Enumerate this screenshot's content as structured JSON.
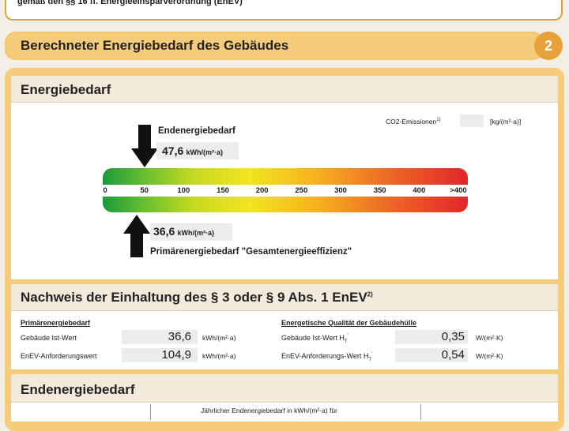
{
  "header": {
    "legal_text": "gemäß den §§ 16 ff. Energieeinsparverordnung (EnEV)"
  },
  "section": {
    "title": "Berechneter Energiebedarf des Gebäudes",
    "number": "2"
  },
  "energiebedarf": {
    "title": "Energiebedarf",
    "co2_label": "CO2-Emissionen",
    "co2_sup": "1)",
    "co2_unit": "[kg/(m²·a)]",
    "end_label": "Endenergiebedarf",
    "end_value": "47,6",
    "end_unit": "kWh/(m²·a)",
    "primary_value": "36,6",
    "primary_unit": "kWh/(m²·a)",
    "primary_label": "Primärenergiebedarf \"Gesamtenergieeffizienz\"",
    "scale_ticks": [
      "0",
      "50",
      "100",
      "150",
      "200",
      "250",
      "300",
      "350",
      "400",
      ">400"
    ],
    "end_marker_value": 47.6,
    "primary_marker_value": 36.6,
    "scale_max": 440,
    "colors": {
      "green": "#1a9a3a",
      "yellow": "#f2e51e",
      "red": "#e2262a"
    }
  },
  "nachweis": {
    "title": "Nachweis der Einhaltung des § 3 oder § 9 Abs. 1 EnEV",
    "title_sup": "2)",
    "left_heading": "Primärenergiebedarf",
    "left_rows": [
      {
        "label": "Gebäude Ist-Wert",
        "value": "36,6",
        "unit": "kWh/(m²·a)"
      },
      {
        "label": "EnEV-Anforderungswert",
        "value": "104,9",
        "unit": "kWh/(m²·a)"
      }
    ],
    "right_heading": "Energetische Qualität der Gebäudehülle",
    "right_rows": [
      {
        "label": "Gebäude Ist-Wert H",
        "label_sub": "T",
        "label_sup": "'",
        "value": "0,35",
        "unit": "W/(m²·K)"
      },
      {
        "label": "EnEV-Anforderungs-Wert H",
        "label_sub": "T",
        "label_sup": "'",
        "value": "0,54",
        "unit": "W/(m²·K)"
      }
    ]
  },
  "endenergie": {
    "title": "Endenergiebedarf",
    "table_header": "Jährlicher Endenergiebedarf in kWh/(m²·a) für"
  }
}
